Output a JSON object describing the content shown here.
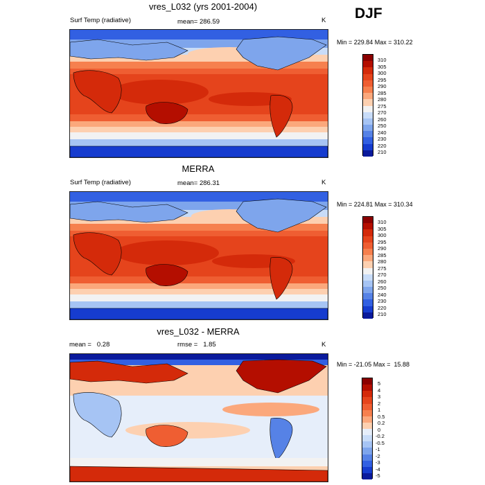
{
  "season": "DJF",
  "units": "K",
  "panels": [
    {
      "title": "vres_L032 (yrs 2001-2004)",
      "left_label": "Surf Temp (radiative)",
      "center_label": "mean= 286.59",
      "right_label": "K",
      "minmax": "Min = 229.84 Max = 310.22"
    },
    {
      "title": "MERRA",
      "left_label": "Surf Temp (radiative)",
      "center_label": "mean= 286.31",
      "right_label": "K",
      "minmax": "Min = 224.81 Max = 310.34"
    },
    {
      "title": "vres_L032 - MERRA",
      "left_label": "mean =   0.28",
      "center_label": "rmse =   1.85",
      "right_label": "K",
      "minmax": "Min = -21.05 Max =  15.88"
    }
  ],
  "colorbars": {
    "temp": {
      "labels": [
        "310",
        "305",
        "300",
        "295",
        "290",
        "285",
        "280",
        "275",
        "270",
        "260",
        "250",
        "240",
        "230",
        "220",
        "210"
      ],
      "colors": [
        "#8b0000",
        "#b40e00",
        "#d42a0a",
        "#e5441c",
        "#ef5e32",
        "#f6804e",
        "#fba87c",
        "#fdd0b0",
        "#f2f2f2",
        "#c8dcf8",
        "#a6c4f4",
        "#7ea5ec",
        "#5682e6",
        "#3260e2",
        "#163ccf",
        "#0a1a9c"
      ]
    },
    "diff": {
      "labels": [
        "5",
        "4",
        "3",
        "2",
        "1",
        "0.5",
        "0.2",
        "0",
        "-0.2",
        "-0.5",
        "-1",
        "-2",
        "-3",
        "-4",
        "-5"
      ],
      "colors": [
        "#8b0000",
        "#b40e00",
        "#d42a0a",
        "#e5441c",
        "#ef5e32",
        "#f6804e",
        "#fba87c",
        "#fdd0b0",
        "#e6eefa",
        "#c8dcf8",
        "#a6c4f4",
        "#7ea5ec",
        "#5682e6",
        "#3260e2",
        "#163ccf",
        "#0a1a9c"
      ]
    }
  }
}
